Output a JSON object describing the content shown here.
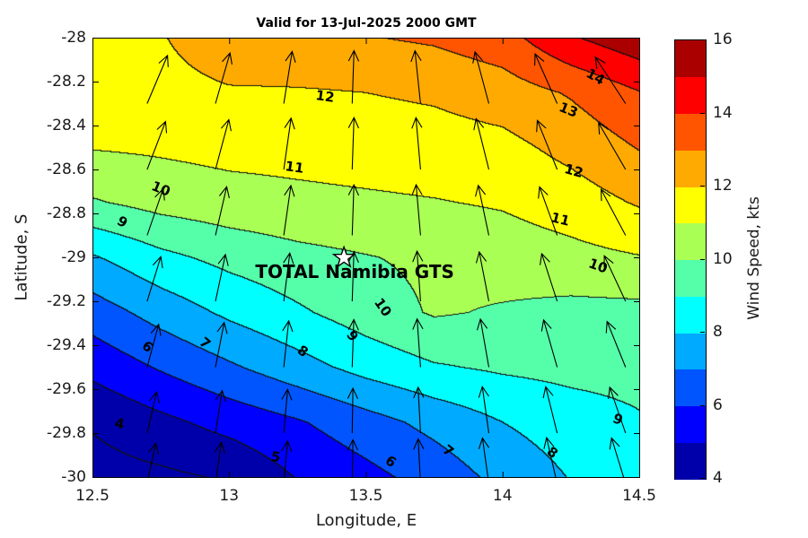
{
  "figure": {
    "title": "Valid for 13-Jul-2025 2000 GMT",
    "background": "#FFFFFF"
  },
  "axes": {
    "xlabel": "Longitude, E",
    "ylabel": "Latitude, S",
    "xlim": [
      12.5,
      14.5
    ],
    "ylim": [
      -30,
      -28
    ],
    "xticks": [
      12.5,
      13,
      13.5,
      14,
      14.5
    ],
    "xtick_labels": [
      "12.5",
      "13",
      "13.5",
      "14",
      "14.5"
    ],
    "yticks": [
      -28,
      -28.2,
      -28.4,
      -28.6,
      -28.8,
      -29,
      -29.2,
      -29.4,
      -29.6,
      -29.8,
      -30
    ],
    "ytick_labels": [
      "-28",
      "-28.2",
      "-28.4",
      "-28.6",
      "-28.8",
      "-29",
      "-29.2",
      "-29.4",
      "-29.6",
      "-29.8",
      "-30"
    ]
  },
  "colorbar": {
    "label": "Wind Speed, kts",
    "min": 4,
    "max": 16,
    "tick_values": [
      4,
      6,
      8,
      10,
      12,
      14,
      16
    ],
    "tick_labels": [
      "4",
      "6",
      "8",
      "10",
      "12",
      "14",
      "16"
    ],
    "band_colors": [
      "#0000AA",
      "#0000FF",
      "#0055FF",
      "#00AAFF",
      "#00FFFF",
      "#55FFAA",
      "#AAFF55",
      "#FFFF00",
      "#FFAA00",
      "#FF5500",
      "#FF0000",
      "#AA0000"
    ]
  },
  "station": {
    "label": "TOTAL Namibia GTS",
    "lon": 13.42,
    "lat": -29.0,
    "marker": "star"
  },
  "chart_data": {
    "type": "filled_contour_with_quiver",
    "title": "Valid for 13-Jul-2025 2000 GMT",
    "xlabel": "Longitude, E",
    "ylabel": "Latitude, S",
    "value_label": "Wind Speed, kts",
    "value_range": [
      4,
      16
    ],
    "lon_grid": [
      12.5,
      12.75,
      13.0,
      13.25,
      13.5,
      13.75,
      14.0,
      14.25,
      14.5
    ],
    "lat_grid": [
      -28.0,
      -28.25,
      -28.5,
      -28.75,
      -29.0,
      -29.25,
      -29.5,
      -29.75,
      -30.0
    ],
    "wind_speed_kts": [
      [
        11.45,
        11.9,
        12.95,
        12.93,
        12.95,
        13.15,
        13.6,
        14.9,
        15.7
      ],
      [
        11.25,
        11.5,
        11.85,
        11.9,
        12.0,
        12.15,
        12.5,
        13.1,
        13.95
      ],
      [
        11.05,
        11.15,
        11.3,
        11.35,
        11.45,
        11.55,
        11.7,
        12.3,
        13.05
      ],
      [
        9.9,
        10.35,
        10.6,
        10.75,
        10.85,
        10.95,
        11.1,
        11.5,
        12.1
      ],
      [
        7.9,
        8.75,
        9.3,
        9.7,
        9.95,
        10.2,
        10.45,
        10.7,
        10.95
      ],
      [
        6.5,
        7.4,
        8.2,
        8.85,
        9.5,
        10.1,
        9.9,
        9.7,
        9.7
      ],
      [
        5.3,
        6.1,
        6.85,
        7.6,
        8.35,
        8.9,
        9.15,
        9.3,
        9.35
      ],
      [
        4.1,
        4.75,
        5.35,
        5.9,
        6.6,
        7.3,
        8.0,
        8.5,
        8.9
      ],
      [
        3.6,
        3.8,
        4.1,
        5.05,
        5.7,
        6.4,
        7.3,
        8.05,
        8.3
      ]
    ],
    "contour_levels": [
      4,
      5,
      6,
      7,
      8,
      9,
      10,
      11,
      12,
      13,
      14,
      15
    ],
    "contour_labels": [
      {
        "t": "12",
        "lon": 13.35,
        "lat": -28.27,
        "rot": 8
      },
      {
        "t": "11",
        "lon": 13.24,
        "lat": -28.59,
        "rot": 8
      },
      {
        "t": "10",
        "lon": 12.75,
        "lat": -28.69,
        "rot": 22
      },
      {
        "t": "9",
        "lon": 12.61,
        "lat": -28.84,
        "rot": 30
      },
      {
        "t": "14",
        "lon": 14.34,
        "lat": -28.18,
        "rot": 30
      },
      {
        "t": "13",
        "lon": 14.24,
        "lat": -28.33,
        "rot": 22
      },
      {
        "t": "12",
        "lon": 14.26,
        "lat": -28.61,
        "rot": 16
      },
      {
        "t": "11",
        "lon": 14.21,
        "lat": -28.83,
        "rot": 14
      },
      {
        "t": "10",
        "lon": 14.35,
        "lat": -29.04,
        "rot": 20
      },
      {
        "t": "10",
        "lon": 13.56,
        "lat": -29.23,
        "rot": 55
      },
      {
        "t": "9",
        "lon": 13.45,
        "lat": -29.36,
        "rot": 55
      },
      {
        "t": "8",
        "lon": 13.27,
        "lat": -29.43,
        "rot": 35
      },
      {
        "t": "7",
        "lon": 12.91,
        "lat": -29.39,
        "rot": 40
      },
      {
        "t": "6",
        "lon": 12.7,
        "lat": -29.41,
        "rot": 40
      },
      {
        "t": "4",
        "lon": 12.6,
        "lat": -29.76,
        "rot": 10
      },
      {
        "t": "5",
        "lon": 13.17,
        "lat": -29.91,
        "rot": 8
      },
      {
        "t": "6",
        "lon": 13.59,
        "lat": -29.93,
        "rot": 35
      },
      {
        "t": "7",
        "lon": 13.8,
        "lat": -29.88,
        "rot": 38
      },
      {
        "t": "8",
        "lon": 14.18,
        "lat": -29.89,
        "rot": 38
      },
      {
        "t": "9",
        "lon": 14.42,
        "lat": -29.74,
        "rot": 22
      }
    ],
    "quiver": {
      "lon": [
        12.7,
        12.95,
        13.2,
        13.45,
        13.7,
        13.95,
        14.2,
        14.45
      ],
      "lat": [
        -28.3,
        -28.6,
        -28.9,
        -29.2,
        -29.5,
        -29.8,
        -30.03
      ],
      "direction_deg_from_north": [
        [
          23,
          16,
          9,
          2,
          -6,
          -15,
          -24,
          -33
        ],
        [
          21,
          15,
          8,
          2,
          -5,
          -14,
          -22,
          -30
        ],
        [
          19,
          13,
          8,
          2,
          -5,
          -12,
          -20,
          -28
        ],
        [
          17,
          12,
          7,
          2,
          -4,
          -11,
          -18,
          -25
        ],
        [
          15,
          11,
          6,
          2,
          -4,
          -10,
          -16,
          -22
        ],
        [
          13,
          9,
          5,
          1,
          -3,
          -8,
          -14,
          -19
        ],
        [
          12,
          8,
          5,
          1,
          -3,
          -8,
          -13,
          -17
        ]
      ]
    }
  }
}
